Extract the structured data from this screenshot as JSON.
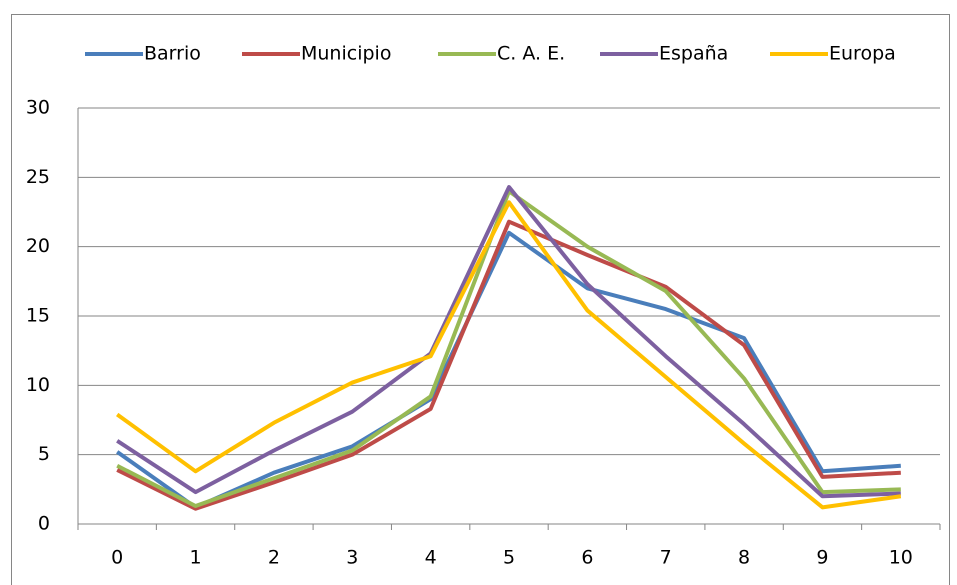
{
  "chart_data": {
    "type": "line",
    "categories": [
      "0",
      "1",
      "2",
      "3",
      "4",
      "5",
      "6",
      "7",
      "8",
      "9",
      "10"
    ],
    "series": [
      {
        "name": "Barrio",
        "color": "#4a7ebb",
        "values": [
          5.2,
          1.2,
          3.7,
          5.6,
          9.0,
          21.0,
          17.0,
          15.5,
          13.4,
          3.8,
          4.2
        ]
      },
      {
        "name": "Municipio",
        "color": "#be4b48",
        "values": [
          3.9,
          1.1,
          3.0,
          5.0,
          8.3,
          21.8,
          19.4,
          17.1,
          12.9,
          3.4,
          3.7
        ]
      },
      {
        "name": "C. A. E.",
        "color": "#98b954",
        "values": [
          4.2,
          1.3,
          3.3,
          5.3,
          9.2,
          24.0,
          20.0,
          16.8,
          10.5,
          2.3,
          2.5
        ]
      },
      {
        "name": "España",
        "color": "#7d60a0",
        "values": [
          6.0,
          2.3,
          5.3,
          8.1,
          12.3,
          24.3,
          17.3,
          12.1,
          7.2,
          2.0,
          2.2
        ]
      },
      {
        "name": "Europa",
        "color": "#ffc000",
        "values": [
          7.9,
          3.8,
          7.3,
          10.2,
          12.1,
          23.2,
          15.4,
          10.6,
          5.8,
          1.2,
          2.0
        ]
      }
    ],
    "ylim": [
      0,
      30
    ],
    "yticks": [
      0,
      5,
      10,
      15,
      20,
      25,
      30
    ],
    "grid": true,
    "legend": "top"
  }
}
